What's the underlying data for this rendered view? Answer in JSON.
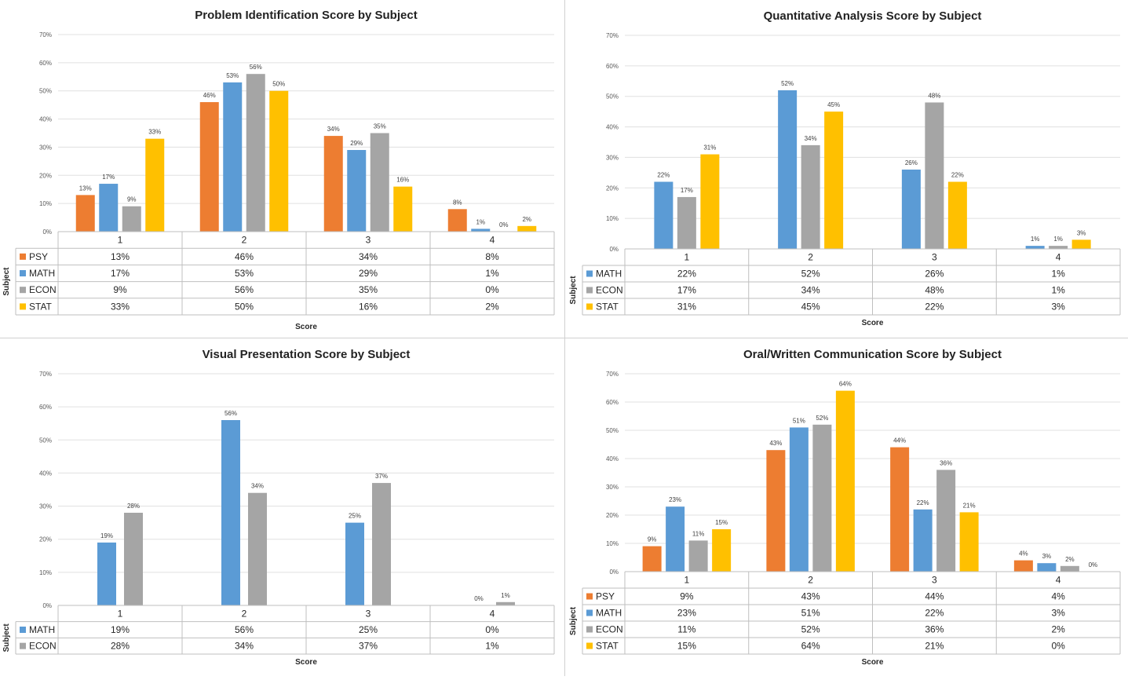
{
  "chart_data": [
    {
      "type": "bar",
      "title": "Problem Identification Score by Subject",
      "xlabel": "Score",
      "ylabel": "Subject",
      "categories": [
        "1",
        "2",
        "3",
        "4"
      ],
      "ylim": [
        0,
        70
      ],
      "yticks": [
        "0%",
        "10%",
        "20%",
        "30%",
        "40%",
        "50%",
        "60%",
        "70%"
      ],
      "grid": true,
      "legend": "data-table",
      "series": [
        {
          "name": "PSY",
          "color": "#ED7D31",
          "values": [
            13,
            46,
            34,
            8
          ],
          "labels": [
            "13%",
            "46%",
            "34%",
            "8%"
          ]
        },
        {
          "name": "MATH",
          "color": "#5B9BD5",
          "values": [
            17,
            53,
            29,
            1
          ],
          "labels": [
            "17%",
            "53%",
            "29%",
            "1%"
          ]
        },
        {
          "name": "ECON",
          "color": "#A5A5A5",
          "values": [
            9,
            56,
            35,
            0
          ],
          "labels": [
            "9%",
            "56%",
            "35%",
            "0%"
          ]
        },
        {
          "name": "STAT",
          "color": "#FFC000",
          "values": [
            33,
            50,
            16,
            2
          ],
          "labels": [
            "33%",
            "50%",
            "16%",
            "2%"
          ]
        }
      ]
    },
    {
      "type": "bar",
      "title": "Quantitative Analysis Score by Subject",
      "xlabel": "Score",
      "ylabel": "Subject",
      "categories": [
        "1",
        "2",
        "3",
        "4"
      ],
      "ylim": [
        0,
        70
      ],
      "yticks": [
        "0%",
        "10%",
        "20%",
        "30%",
        "40%",
        "50%",
        "60%",
        "70%"
      ],
      "grid": true,
      "legend": "data-table",
      "series": [
        {
          "name": "MATH",
          "color": "#5B9BD5",
          "values": [
            22,
            52,
            26,
            1
          ],
          "labels": [
            "22%",
            "52%",
            "26%",
            "1%"
          ]
        },
        {
          "name": "ECON",
          "color": "#A5A5A5",
          "values": [
            17,
            34,
            48,
            1
          ],
          "labels": [
            "17%",
            "34%",
            "48%",
            "1%"
          ]
        },
        {
          "name": "STAT",
          "color": "#FFC000",
          "values": [
            31,
            45,
            22,
            3
          ],
          "labels": [
            "31%",
            "45%",
            "22%",
            "3%"
          ]
        }
      ]
    },
    {
      "type": "bar",
      "title": "Visual Presentation Score by Subject",
      "xlabel": "Score",
      "ylabel": "Subject",
      "categories": [
        "1",
        "2",
        "3",
        "4"
      ],
      "ylim": [
        0,
        70
      ],
      "yticks": [
        "0%",
        "10%",
        "20%",
        "30%",
        "40%",
        "50%",
        "60%",
        "70%"
      ],
      "grid": true,
      "legend": "data-table",
      "series": [
        {
          "name": "MATH",
          "color": "#5B9BD5",
          "values": [
            19,
            56,
            25,
            0
          ],
          "labels": [
            "19%",
            "56%",
            "25%",
            "0%"
          ]
        },
        {
          "name": "ECON",
          "color": "#A5A5A5",
          "values": [
            28,
            34,
            37,
            1
          ],
          "labels": [
            "28%",
            "34%",
            "37%",
            "1%"
          ]
        }
      ]
    },
    {
      "type": "bar",
      "title": "Oral/Written Communication Score by Subject",
      "xlabel": "Score",
      "ylabel": "Subject",
      "categories": [
        "1",
        "2",
        "3",
        "4"
      ],
      "ylim": [
        0,
        70
      ],
      "yticks": [
        "0%",
        "10%",
        "20%",
        "30%",
        "40%",
        "50%",
        "60%",
        "70%"
      ],
      "grid": true,
      "legend": "data-table",
      "series": [
        {
          "name": "PSY",
          "color": "#ED7D31",
          "values": [
            9,
            43,
            44,
            4
          ],
          "labels": [
            "9%",
            "43%",
            "44%",
            "4%"
          ]
        },
        {
          "name": "MATH",
          "color": "#5B9BD5",
          "values": [
            23,
            51,
            22,
            3
          ],
          "labels": [
            "23%",
            "51%",
            "22%",
            "3%"
          ]
        },
        {
          "name": "ECON",
          "color": "#A5A5A5",
          "values": [
            11,
            52,
            36,
            2
          ],
          "labels": [
            "11%",
            "52%",
            "36%",
            "2%"
          ]
        },
        {
          "name": "STAT",
          "color": "#FFC000",
          "values": [
            15,
            64,
            21,
            0
          ],
          "labels": [
            "15%",
            "64%",
            "21%",
            "0%"
          ]
        }
      ]
    }
  ]
}
